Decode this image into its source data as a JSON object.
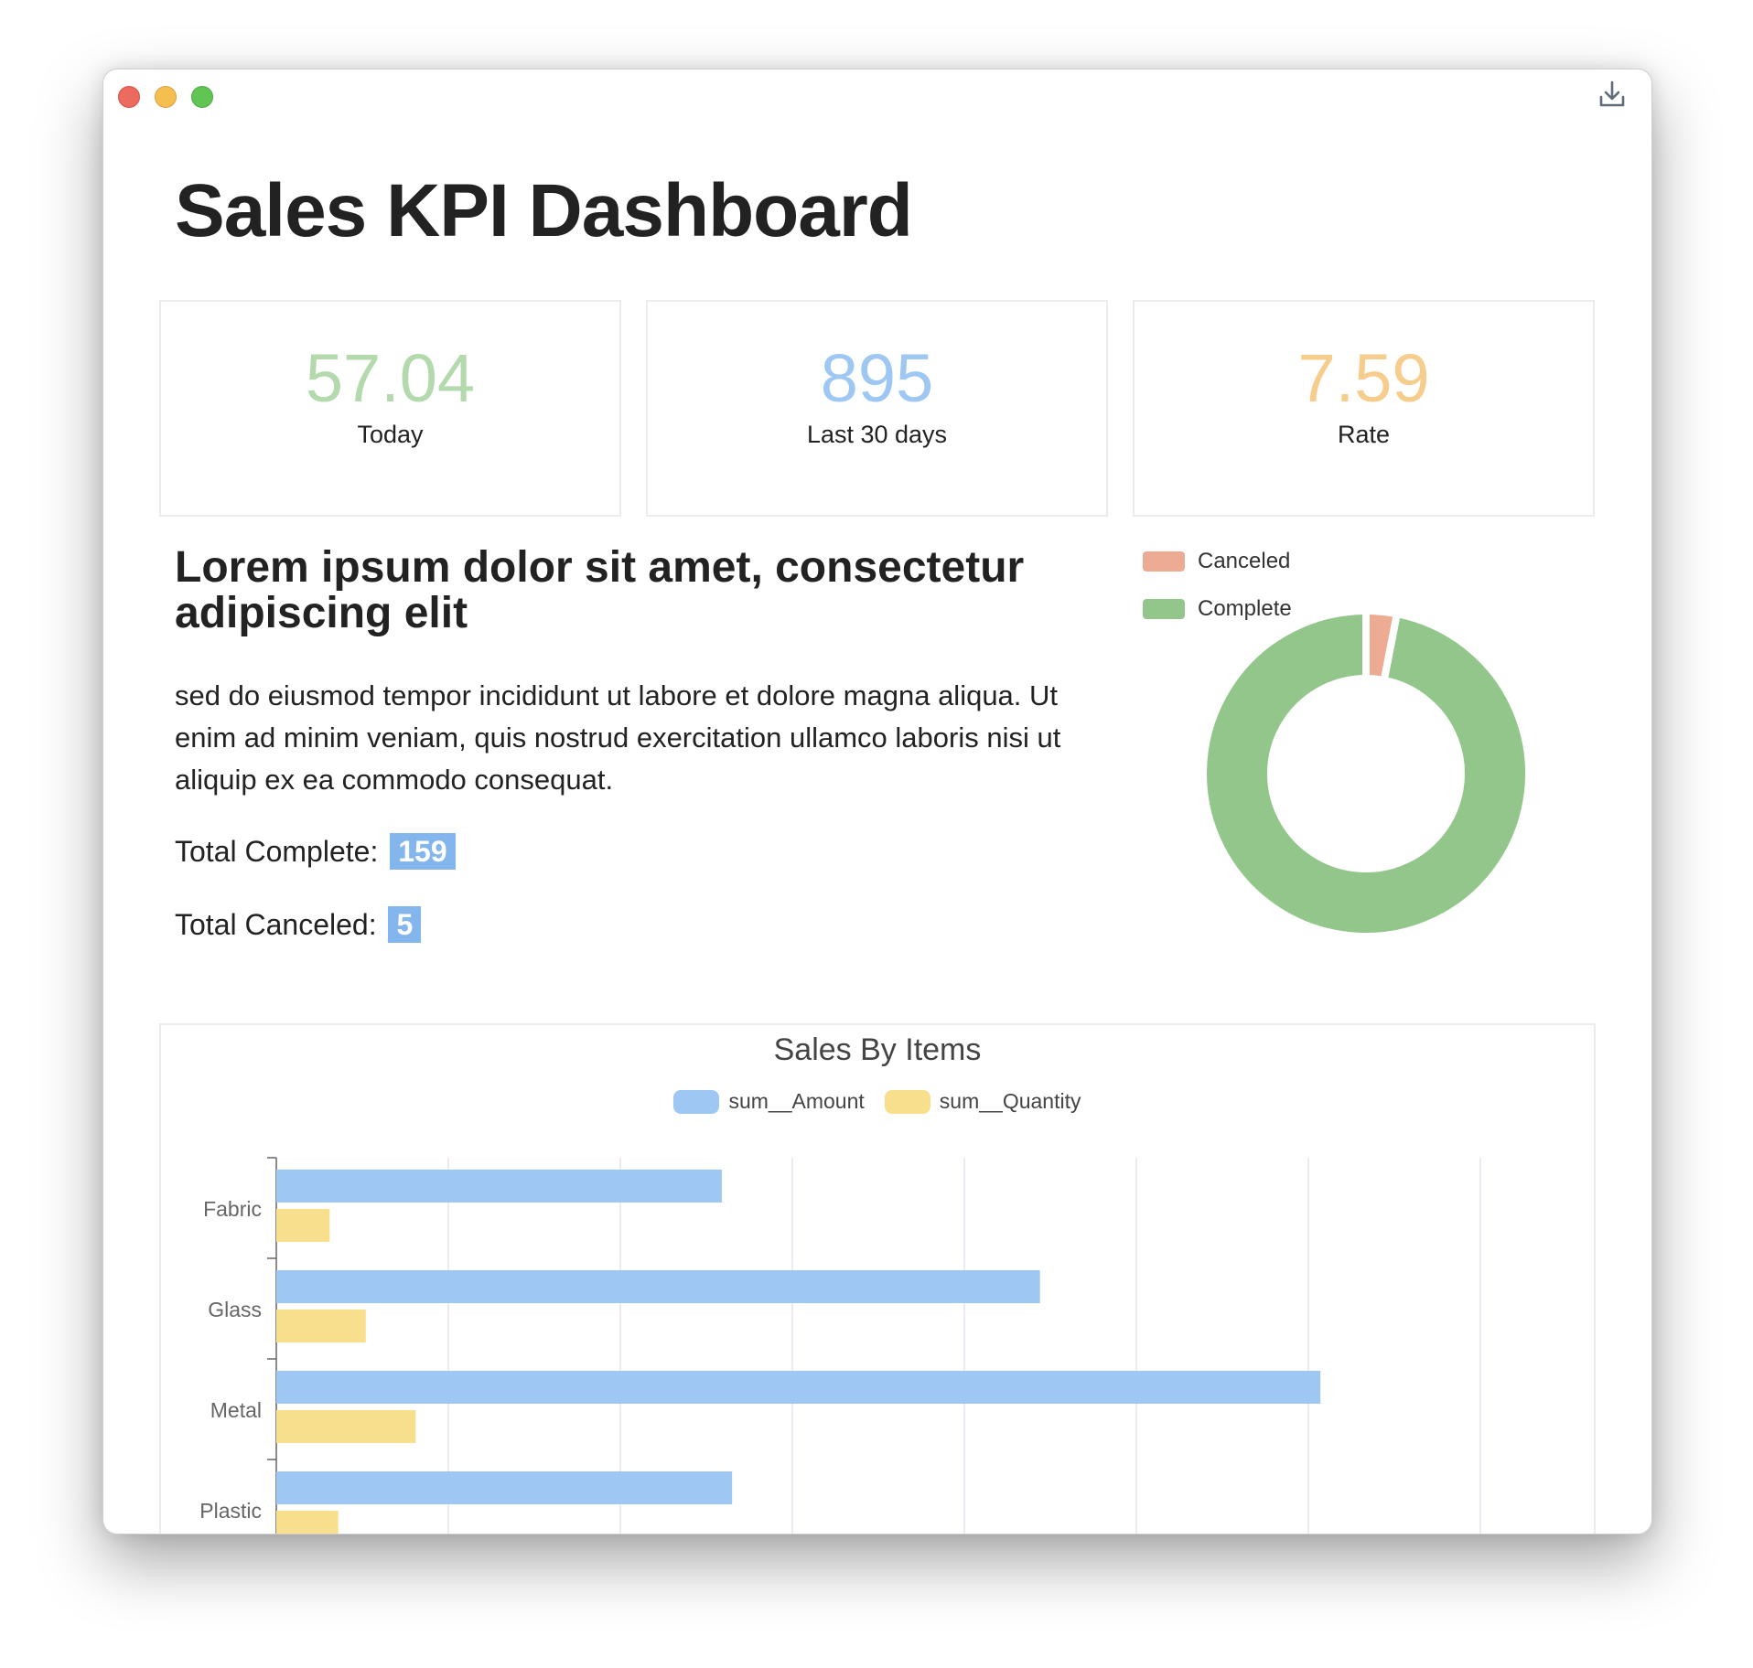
{
  "window": {
    "download_icon": "download-icon"
  },
  "header": {
    "title": "Sales KPI Dashboard"
  },
  "kpis": [
    {
      "value": "57.04",
      "label": "Today",
      "color": "#b3d9ad"
    },
    {
      "value": "895",
      "label": "Last 30 days",
      "color": "#9ec8f3"
    },
    {
      "value": "7.59",
      "label": "Rate",
      "color": "#f6cd8c"
    }
  ],
  "content": {
    "heading": "Lorem ipsum dolor sit amet, consectetur adipiscing elit",
    "paragraph": "sed do eiusmod tempor incididunt ut labore et dolore magna aliqua. Ut enim ad minim veniam, quis nostrud exercitation ullamco laboris nisi ut aliquip ex ea commodo consequat.",
    "total_complete_label": "Total Complete:",
    "total_complete_value": "159",
    "total_canceled_label": "Total Canceled:",
    "total_canceled_value": "5"
  },
  "chart_data": [
    {
      "type": "pie",
      "variant": "doughnut",
      "labels": [
        "Canceled",
        "Complete"
      ],
      "values": [
        5,
        159
      ],
      "colors": [
        "#eeab94",
        "#93c68a"
      ],
      "legend": "top-left"
    },
    {
      "type": "bar",
      "orientation": "horizontal",
      "title": "Sales By Items",
      "categories": [
        "Fabric",
        "Glass",
        "Metal",
        "Plastic"
      ],
      "series": [
        {
          "name": "sum__Amount",
          "values": [
            2.59,
            4.44,
            6.07,
            2.65
          ],
          "color": "#9ec8f3"
        },
        {
          "name": "sum__Quantity",
          "values": [
            0.31,
            0.52,
            0.81,
            0.36
          ],
          "color": "#f8df8d"
        }
      ],
      "xlim": [
        0,
        7.5
      ],
      "grid": true,
      "legend": "top"
    }
  ]
}
